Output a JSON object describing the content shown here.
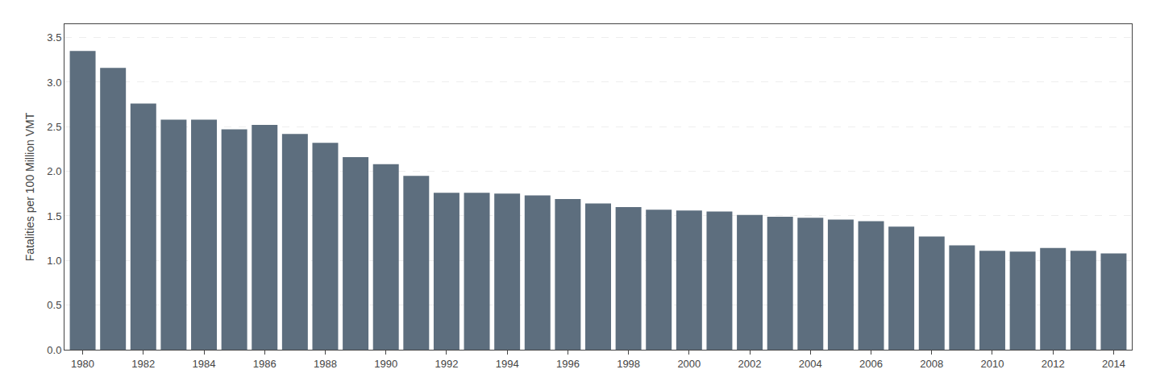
{
  "chart_data": {
    "type": "bar",
    "x": [
      1980,
      1981,
      1982,
      1983,
      1984,
      1985,
      1986,
      1987,
      1988,
      1989,
      1990,
      1991,
      1992,
      1993,
      1994,
      1995,
      1996,
      1997,
      1998,
      1999,
      2000,
      2001,
      2002,
      2003,
      2004,
      2005,
      2006,
      2007,
      2008,
      2009,
      2010,
      2011,
      2012,
      2013,
      2014
    ],
    "values": [
      3.35,
      3.16,
      2.76,
      2.58,
      2.58,
      2.47,
      2.52,
      2.42,
      2.32,
      2.16,
      2.08,
      1.95,
      1.76,
      1.76,
      1.75,
      1.73,
      1.69,
      1.64,
      1.6,
      1.57,
      1.56,
      1.55,
      1.51,
      1.49,
      1.48,
      1.46,
      1.44,
      1.38,
      1.27,
      1.17,
      1.11,
      1.1,
      1.14,
      1.11,
      1.08
    ],
    "color": "#5d6e7e",
    "ylabel": "Fatalities per 100 Million VMT",
    "xlim": [
      1979.4,
      2014.6
    ],
    "xticks": [
      1980,
      1982,
      1984,
      1986,
      1988,
      1990,
      1992,
      1994,
      1996,
      1998,
      2000,
      2002,
      2004,
      2006,
      2008,
      2010,
      2012,
      2014
    ],
    "ylim": [
      0,
      3.65
    ],
    "yticks": [
      {
        "value": 0.0,
        "label": "0.0"
      },
      0.5,
      {
        "value": 1.0,
        "label": "1.0"
      },
      1.5,
      {
        "value": 2.0,
        "label": "2.0"
      },
      2.5,
      {
        "value": 3.0,
        "label": "3.0"
      },
      3.5
    ],
    "grid": true
  }
}
